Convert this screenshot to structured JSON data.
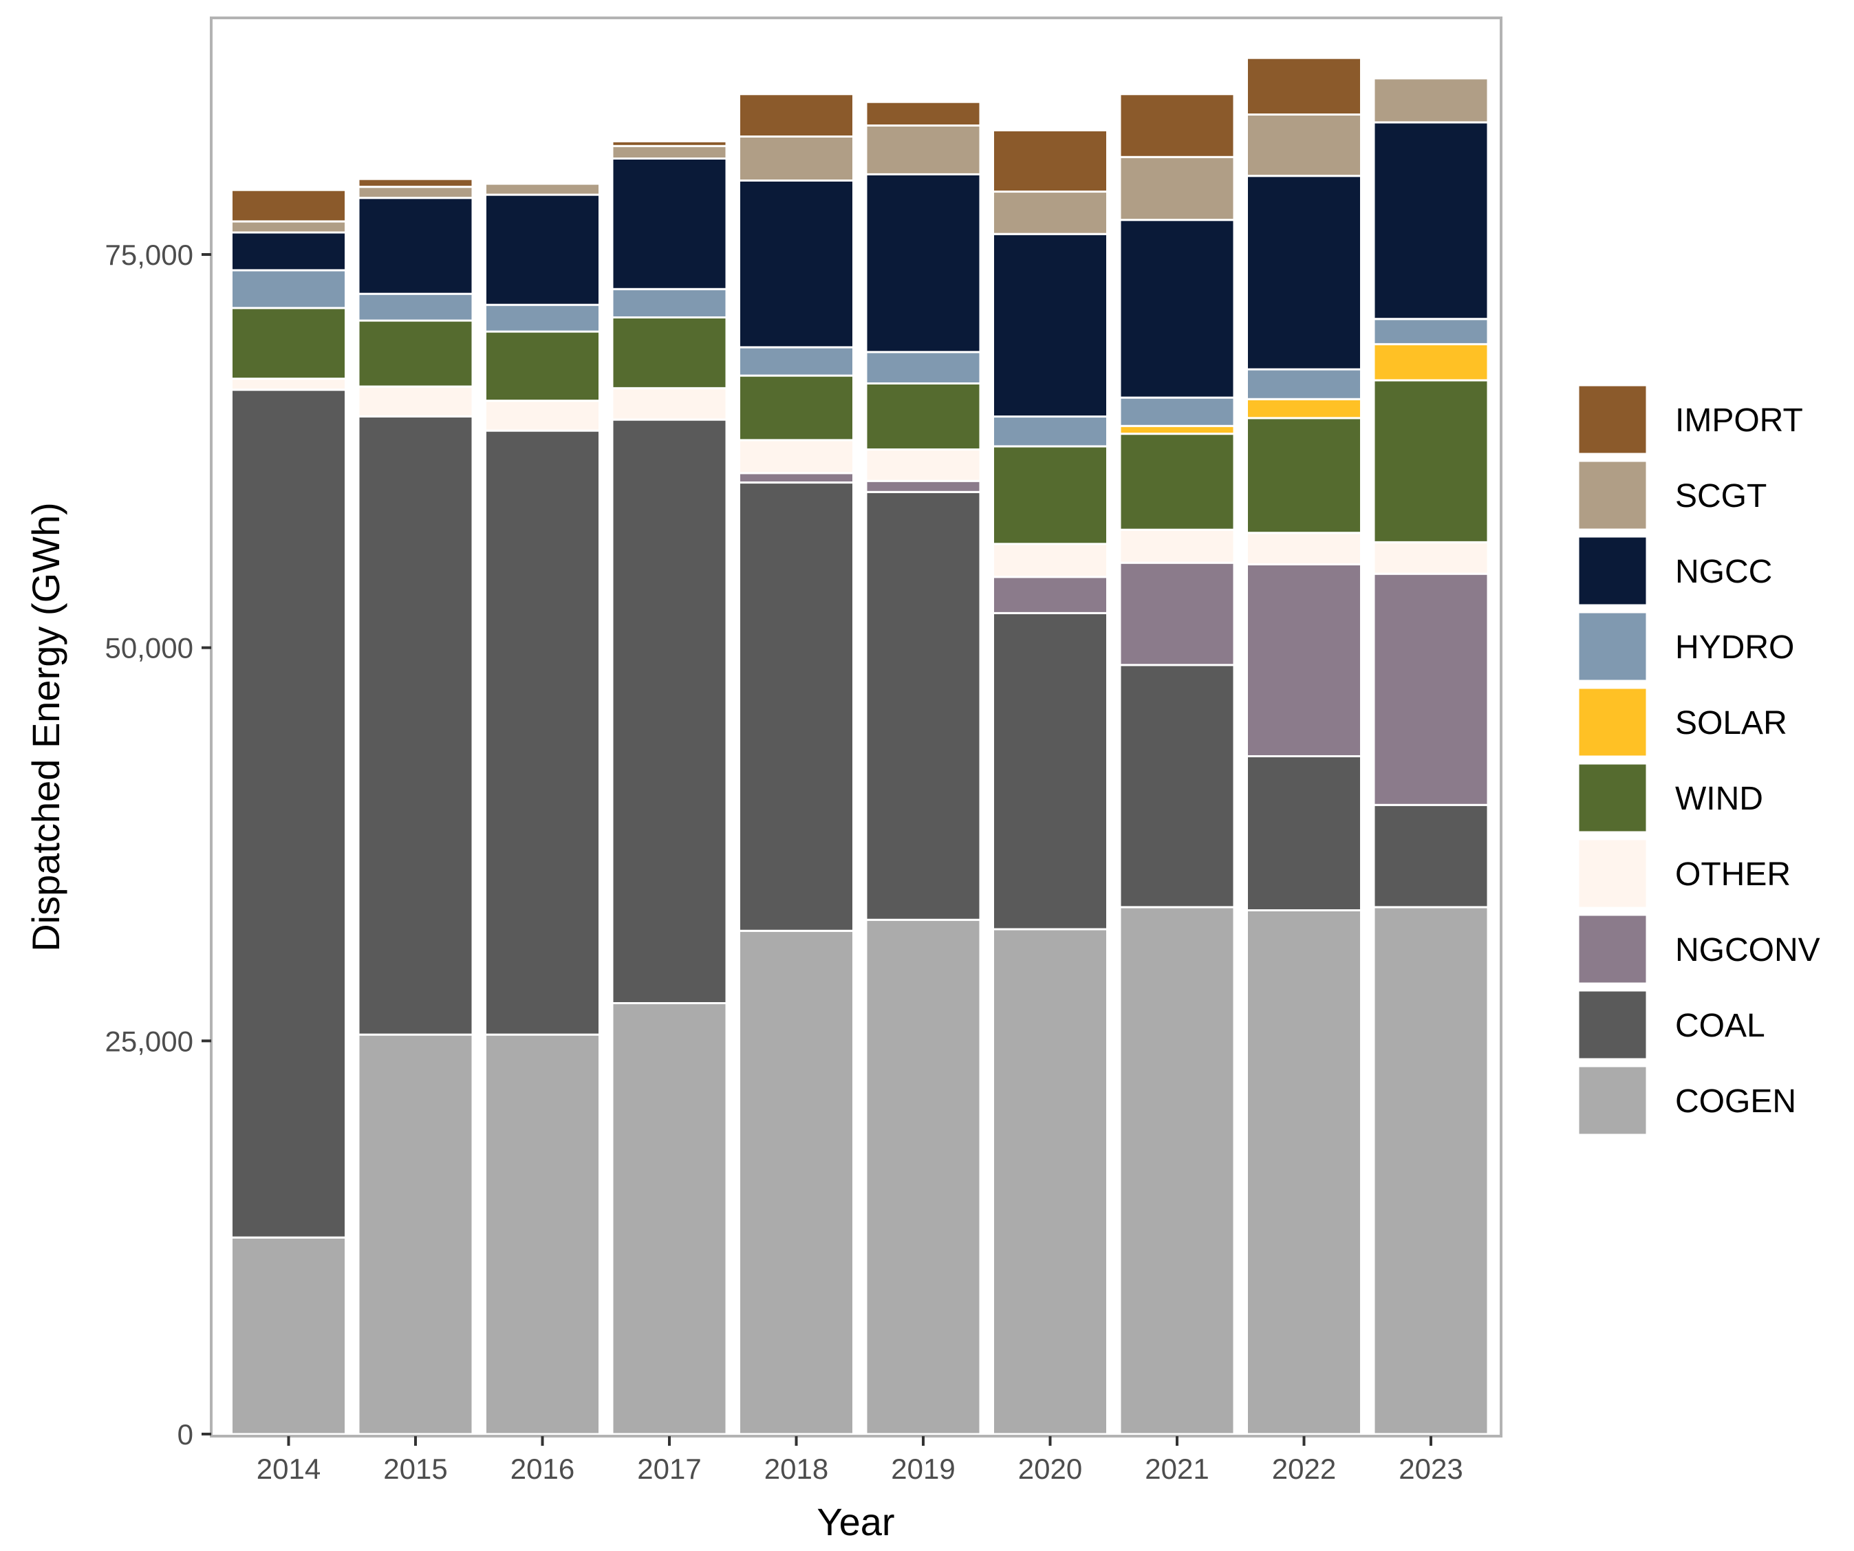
{
  "chart_data": {
    "type": "bar",
    "stacked": true,
    "title": "",
    "xlabel": "Year",
    "ylabel": "Dispatched Energy (GWh)",
    "ylim": [
      0,
      90000
    ],
    "yticks": [
      0,
      25000,
      50000,
      75000
    ],
    "ytick_labels": [
      "0",
      "25,000",
      "50,000",
      "75,000"
    ],
    "grid": false,
    "legend_position": "right",
    "categories": [
      "2014",
      "2015",
      "2016",
      "2017",
      "2018",
      "2019",
      "2020",
      "2021",
      "2022",
      "2023"
    ],
    "series": [
      {
        "name": "COGEN",
        "color": "#ABABAB",
        "values": [
          12500,
          25400,
          25400,
          27400,
          32000,
          32700,
          32100,
          33500,
          33300,
          33500
        ]
      },
      {
        "name": "COAL",
        "color": "#5A5A5A",
        "values": [
          53900,
          39300,
          38400,
          37100,
          28500,
          27200,
          20100,
          15400,
          9800,
          6500
        ]
      },
      {
        "name": "NGCONV",
        "color": "#8B7B8B",
        "values": [
          0,
          0,
          0,
          0,
          600,
          700,
          2300,
          6500,
          12200,
          14700
        ]
      },
      {
        "name": "OTHER",
        "color": "#FFF5EE",
        "values": [
          700,
          1900,
          1900,
          2000,
          2100,
          2000,
          2100,
          2100,
          2000,
          2000
        ]
      },
      {
        "name": "WIND",
        "color": "#556B2F",
        "values": [
          4500,
          4200,
          4400,
          4500,
          4100,
          4200,
          6200,
          6100,
          7300,
          10300
        ]
      },
      {
        "name": "SOLAR",
        "color": "#FFC125",
        "values": [
          0,
          0,
          0,
          0,
          0,
          0,
          0,
          500,
          1200,
          2300
        ]
      },
      {
        "name": "HYDRO",
        "color": "#8099B0",
        "values": [
          2400,
          1700,
          1700,
          1800,
          1800,
          2000,
          1900,
          1800,
          1900,
          1600
        ]
      },
      {
        "name": "NGCC",
        "color": "#0A1A38",
        "values": [
          2400,
          6100,
          7000,
          8300,
          10600,
          11300,
          11600,
          11300,
          12300,
          12500
        ]
      },
      {
        "name": "SCGT",
        "color": "#B09E86",
        "values": [
          700,
          700,
          700,
          800,
          2800,
          3100,
          2700,
          4000,
          3900,
          2800
        ]
      },
      {
        "name": "IMPORT",
        "color": "#8B5A2B",
        "values": [
          2000,
          500,
          0,
          300,
          2700,
          1500,
          3900,
          4000,
          3600,
          0
        ]
      }
    ],
    "legend_order": [
      "IMPORT",
      "SCGT",
      "NGCC",
      "HYDRO",
      "SOLAR",
      "WIND",
      "OTHER",
      "NGCONV",
      "COAL",
      "COGEN"
    ]
  }
}
